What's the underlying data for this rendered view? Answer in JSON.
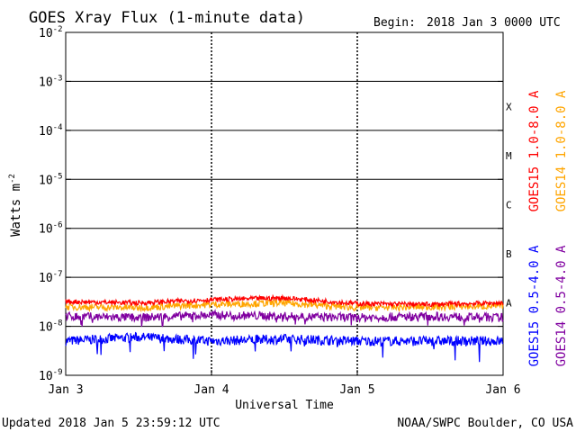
{
  "header": {
    "title": "GOES Xray Flux (1-minute data)",
    "begin_label": "Begin:",
    "begin_value": "2018 Jan 3 0000 UTC"
  },
  "footer": {
    "updated": "Updated 2018 Jan  5 23:59:12 UTC",
    "source": "NOAA/SWPC Boulder, CO USA"
  },
  "chart_data": {
    "type": "line",
    "title": "GOES Xray Flux (1-minute data)",
    "xlabel": "Universal Time",
    "ylabel": "Watts m",
    "ylabel_superscript": "-2",
    "y_scale": "log",
    "ylim": [
      1e-09,
      0.01
    ],
    "y_ticks": [
      {
        "base": "10",
        "exp": "-2"
      },
      {
        "base": "10",
        "exp": "-3"
      },
      {
        "base": "10",
        "exp": "-4"
      },
      {
        "base": "10",
        "exp": "-5"
      },
      {
        "base": "10",
        "exp": "-6"
      },
      {
        "base": "10",
        "exp": "-7"
      },
      {
        "base": "10",
        "exp": "-8"
      },
      {
        "base": "10",
        "exp": "-9"
      }
    ],
    "x_ticks": [
      "Jan 3",
      "Jan 4",
      "Jan 5",
      "Jan 6"
    ],
    "xlim_days": [
      0,
      3
    ],
    "flare_classes": [
      {
        "label": "X",
        "flux": 0.0001
      },
      {
        "label": "M",
        "flux": 1e-05
      },
      {
        "label": "C",
        "flux": 1e-06
      },
      {
        "label": "B",
        "flux": 1e-07
      },
      {
        "label": "A",
        "flux": 1e-08
      }
    ],
    "grid": true,
    "legend_placement": "right, vertical",
    "series": [
      {
        "name": "GOES15 1.0-8.0 A",
        "color": "#ff0000",
        "x": [
          0,
          0.5,
          1.0,
          1.5,
          2.0,
          2.5,
          3.0
        ],
        "y": [
          3.2e-08,
          3e-08,
          3.5e-08,
          3.8e-08,
          2.9e-08,
          2.8e-08,
          3e-08
        ]
      },
      {
        "name": "GOES14 1.0-8.0 A",
        "color": "#ffa500",
        "x": [
          0,
          0.5,
          1.0,
          1.5,
          2.0,
          2.5,
          3.0
        ],
        "y": [
          2.5e-08,
          2.4e-08,
          2.8e-08,
          3e-08,
          2.4e-08,
          2.5e-08,
          2.6e-08
        ]
      },
      {
        "name": "GOES15 0.5-4.0 A",
        "color": "#0000ff",
        "x": [
          0,
          0.5,
          1.0,
          1.5,
          2.0,
          2.5,
          3.0
        ],
        "y": [
          5e-09,
          6e-09,
          5e-09,
          5.5e-09,
          5e-09,
          5e-09,
          5e-09
        ]
      },
      {
        "name": "GOES14 0.5-4.0 A",
        "color": "#8000a0",
        "x": [
          0,
          0.5,
          1.0,
          1.5,
          2.0,
          2.5,
          3.0
        ],
        "y": [
          1.6e-08,
          1.5e-08,
          1.7e-08,
          1.6e-08,
          1.5e-08,
          1.6e-08,
          1.5e-08
        ]
      }
    ]
  }
}
